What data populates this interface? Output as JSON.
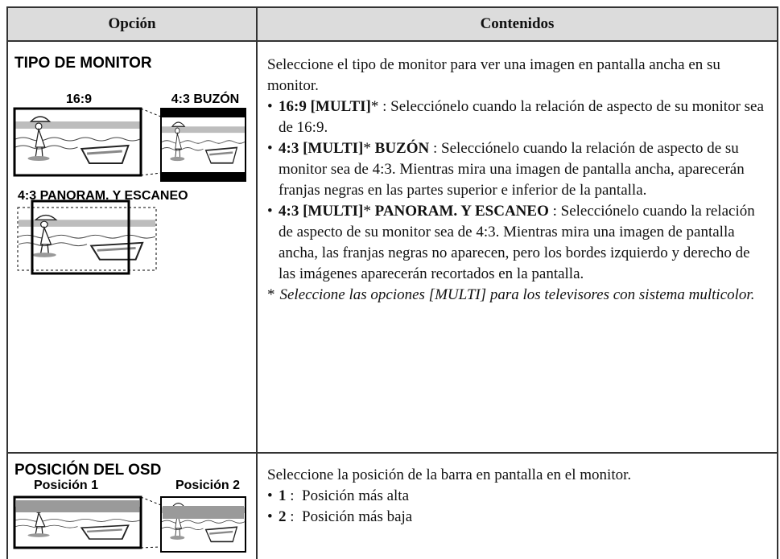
{
  "table": {
    "headers": [
      "Opción",
      "Contenidos"
    ],
    "rows": [
      {
        "option": "TIPO DE MONITOR",
        "figure_labels": [
          "16:9",
          "4:3 BUZÓN",
          "4:3 PANORAM. Y ESCANEO"
        ],
        "intro": "Seleccione el tipo de monitor para ver una imagen en pantalla ancha en su monitor.",
        "bullets": [
          [
            {
              "text": "16:9 [MULTI]",
              "bold": true
            },
            {
              "text": "* : Selecciónelo cuando la relación de aspecto de su monitor sea de 16:9."
            }
          ],
          [
            {
              "text": "4:3 [MULTI]",
              "bold": true
            },
            {
              "text": "*"
            },
            {
              "text": " BUZÓN",
              "bold": true
            },
            {
              "text": " : Selecciónelo cuando la relación de aspecto de su monitor sea de 4:3. Mientras mira una imagen de pantalla ancha, aparecerán franjas negras en las partes superior e inferior de la pantalla."
            }
          ],
          [
            {
              "text": "4:3 [MULTI]",
              "bold": true
            },
            {
              "text": "*"
            },
            {
              "text": " PANORAM. Y ESCANEO",
              "bold": true
            },
            {
              "text": " : Selecciónelo cuando la relación de aspecto de su monitor sea de 4:3. Mientras mira una imagen de pantalla ancha, las franjas negras no aparecen, pero los bordes izquierdo y derecho de las imágenes aparecerán recortados en la pantalla."
            }
          ]
        ],
        "note": {
          "mark": "*",
          "text": "Seleccione las opciones [MULTI] para los televisores con sistema multicolor."
        }
      },
      {
        "option": "POSICIÓN DEL OSD",
        "figure_labels": [
          "Posición 1",
          "Posición 2"
        ],
        "intro": "Seleccione la posición de la barra en pantalla en el monitor.",
        "bullets": [
          [
            {
              "text": "1",
              "bold": true
            },
            {
              "text": " :  Posición más alta"
            }
          ],
          [
            {
              "text": "2",
              "bold": true
            },
            {
              "text": " :  Posición más baja"
            }
          ]
        ]
      }
    ]
  }
}
